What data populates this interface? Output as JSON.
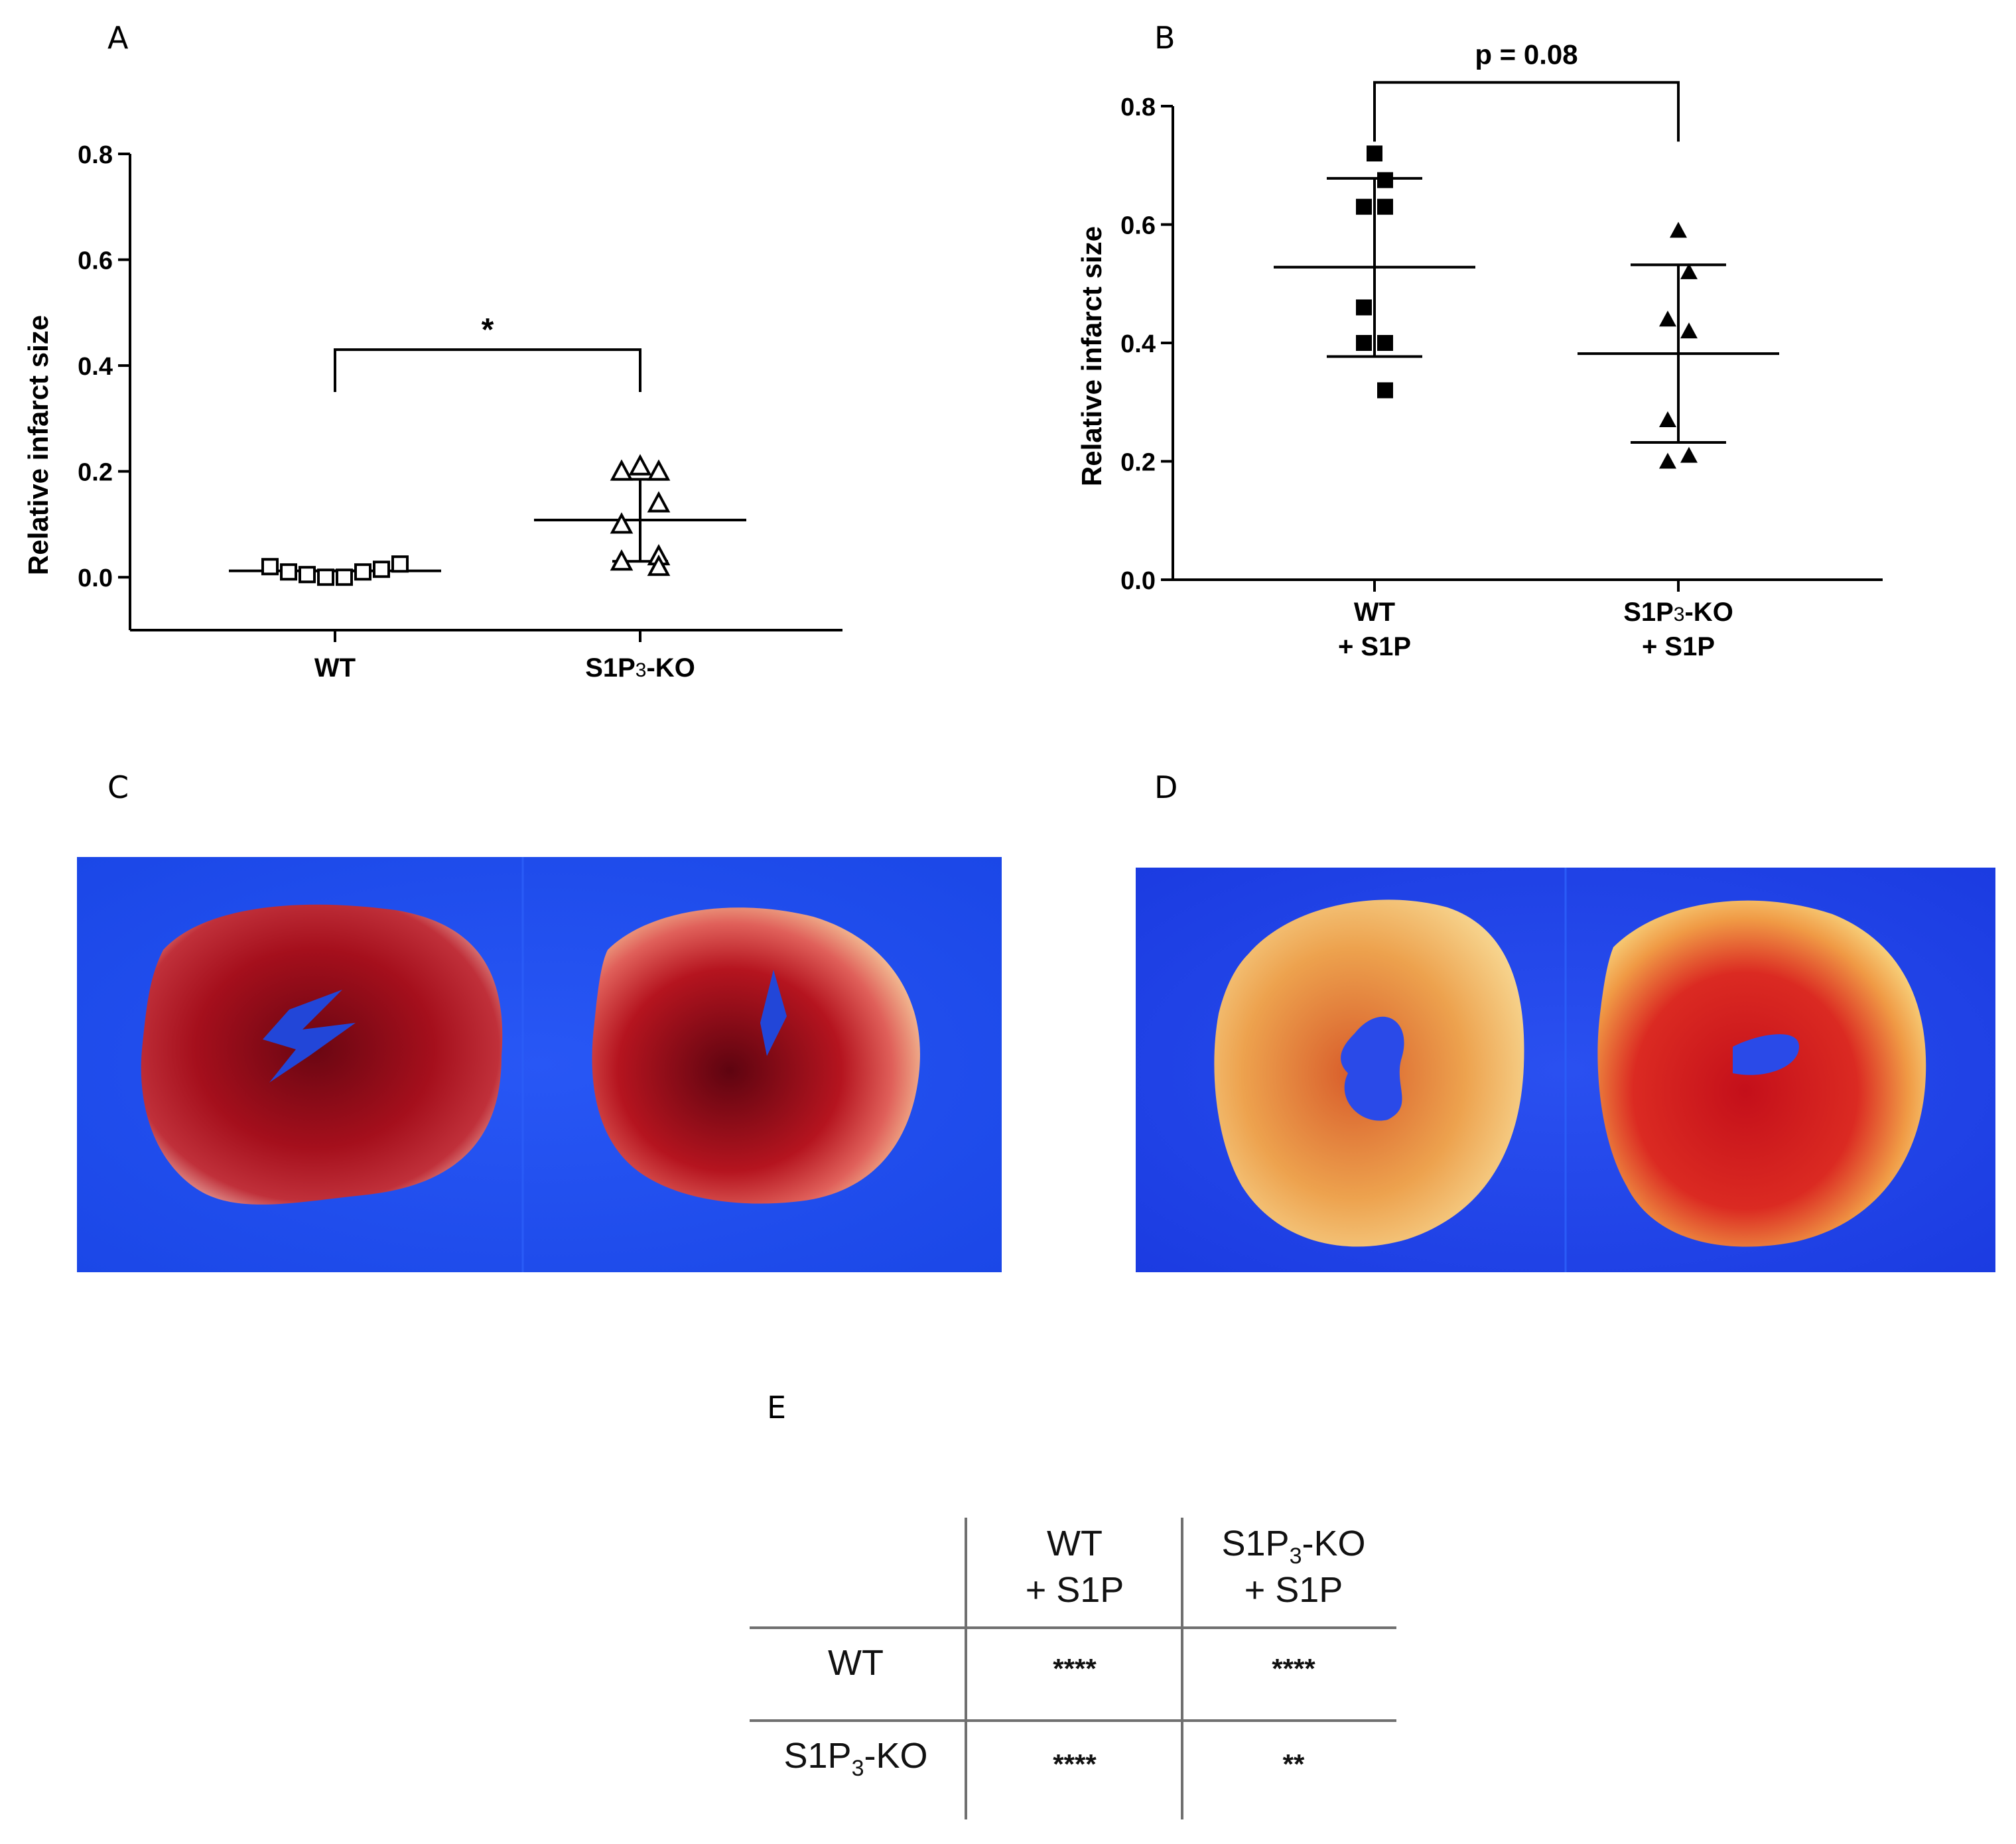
{
  "panels": {
    "A": "A",
    "B": "B",
    "C": "C",
    "D": "D",
    "E": "E"
  },
  "chart_data": [
    {
      "id": "A",
      "type": "scatter",
      "title": "",
      "ylabel": "Relative infarct size",
      "xlabel": "",
      "ylim": [
        -0.1,
        0.8
      ],
      "yticks": [
        "0.0",
        "0.2",
        "0.4",
        "0.6",
        "0.8"
      ],
      "categories": [
        "WT",
        "S1P3-KO"
      ],
      "category_main": [
        "WT",
        "S1P"
      ],
      "category_sub": [
        "",
        "3"
      ],
      "category_tail": [
        "",
        "-KO"
      ],
      "marker": "open-square-triangle",
      "series": [
        {
          "name": "WT",
          "marker": "open-square",
          "values": [
            0.02,
            0.01,
            0.005,
            0.0,
            0.0,
            0.01,
            0.015,
            0.025
          ],
          "mean": 0.012,
          "err_low": 0.012,
          "err_high": 0.012
        },
        {
          "name": "S1P3-KO",
          "marker": "open-triangle",
          "values": [
            0.21,
            0.2,
            0.2,
            0.14,
            0.1,
            0.04,
            0.03,
            0.02
          ],
          "mean": 0.108,
          "err_low": 0.03,
          "err_high": 0.185
        }
      ],
      "significance": {
        "label": "*",
        "y": 0.43
      }
    },
    {
      "id": "B",
      "type": "scatter",
      "title": "",
      "ylabel": "Relative infarct size",
      "xlabel": "",
      "ylim": [
        0.0,
        0.8
      ],
      "yticks": [
        "0.0",
        "0.2",
        "0.4",
        "0.6",
        "0.8"
      ],
      "categories": [
        "WT + S1P",
        "S1P3-KO + S1P"
      ],
      "category_line1_main": [
        "WT",
        "S1P"
      ],
      "category_line1_sub": [
        "",
        "3"
      ],
      "category_line1_tail": [
        "",
        "-KO"
      ],
      "category_line2": [
        "+ S1P",
        "+ S1P"
      ],
      "series": [
        {
          "name": "WT + S1P",
          "marker": "filled-square",
          "values": [
            0.72,
            0.675,
            0.63,
            0.63,
            0.46,
            0.4,
            0.4,
            0.32
          ],
          "mean": 0.528,
          "err_low": 0.377,
          "err_high": 0.678
        },
        {
          "name": "S1P3-KO + S1P",
          "marker": "filled-triangle",
          "values": [
            0.59,
            0.52,
            0.44,
            0.42,
            0.27,
            0.21,
            0.2
          ],
          "mean": 0.382,
          "err_low": 0.232,
          "err_high": 0.532
        }
      ],
      "significance": {
        "label": "p = 0.08",
        "y": 0.84
      }
    }
  ],
  "table": {
    "col_headers": [
      {
        "line1_main": "WT",
        "line1_sub": "",
        "line1_tail": "",
        "line2": "+ S1P"
      },
      {
        "line1_main": "S1P",
        "line1_sub": "3",
        "line1_tail": "-KO",
        "line2": "+ S1P"
      }
    ],
    "rows": [
      {
        "label_main": "WT",
        "label_sub": "",
        "label_tail": "",
        "cells": [
          "****",
          "****"
        ]
      },
      {
        "label_main": "S1P",
        "label_sub": "3",
        "label_tail": "-KO",
        "cells": [
          "****",
          "**"
        ]
      }
    ]
  },
  "colors": {
    "background_blue": "#1b4ef0",
    "tissue_red": "#b01020",
    "tissue_pale": "#f2b872"
  }
}
